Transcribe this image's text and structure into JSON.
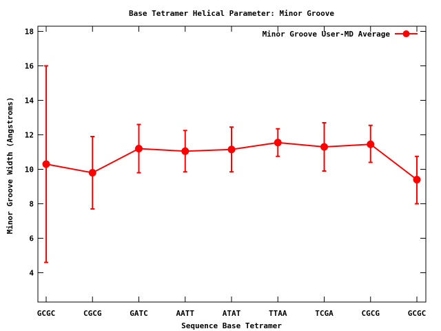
{
  "chart_data": {
    "type": "line",
    "title": "Base Tetramer Helical Parameter: Minor Groove",
    "xlabel": "Sequence Base Tetramer",
    "ylabel": "Minor Groove Width (Angstroms)",
    "categories": [
      "GCGC",
      "CGCG",
      "GATC",
      "AATT",
      "ATAT",
      "TTAA",
      "TCGA",
      "CGCG",
      "GCGC"
    ],
    "ylim": [
      2.3,
      18.3
    ],
    "yticks": [
      4,
      6,
      8,
      10,
      12,
      14,
      16,
      18
    ],
    "grid": false,
    "legend_position": "top-right",
    "series": [
      {
        "name": "Minor Groove User-MD Average",
        "color": "#ff0000",
        "values": [
          10.3,
          9.8,
          11.2,
          11.05,
          11.15,
          11.55,
          11.3,
          11.45,
          9.4
        ],
        "err_low": [
          4.6,
          7.7,
          9.8,
          9.85,
          9.85,
          10.75,
          9.9,
          10.4,
          8.0
        ],
        "err_high": [
          16.0,
          11.9,
          12.6,
          12.25,
          12.45,
          12.35,
          12.7,
          12.55,
          10.75
        ]
      }
    ]
  }
}
